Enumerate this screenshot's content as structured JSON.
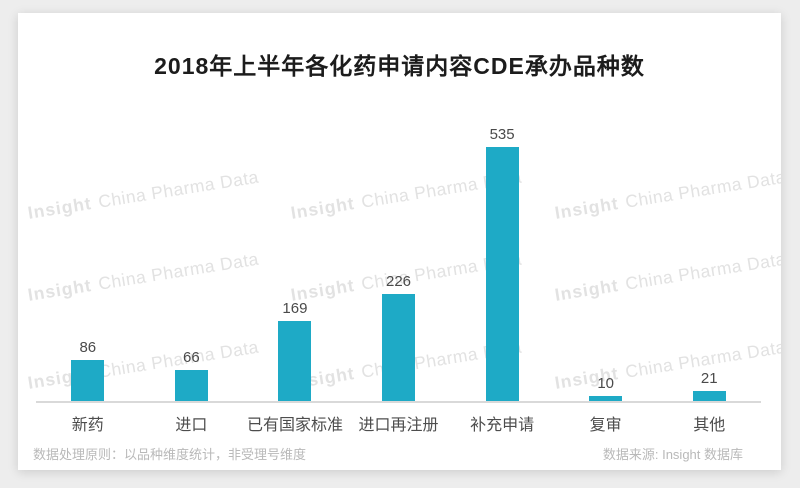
{
  "page": {
    "outer_background": "#ededed",
    "card_background": "#ffffff"
  },
  "chart_data": {
    "type": "bar",
    "title": "2018年上半年各化药申请内容CDE承办品种数",
    "categories": [
      "新药",
      "进口",
      "已有国家标准",
      "进口再注册",
      "补充申请",
      "复审",
      "其他"
    ],
    "values": [
      86,
      66,
      169,
      226,
      535,
      10,
      21
    ],
    "xlabel": "",
    "ylabel": "",
    "ylim": [
      0,
      560
    ],
    "grid": false,
    "legend": "none",
    "value_labels": true,
    "bar_color": "#1eaac6",
    "axis_color": "#d9d9d9"
  },
  "watermark": {
    "bold_part": "Insight",
    "regular_part": "China Pharma Data",
    "color": "#e2e2e2"
  },
  "footer": {
    "left_note": "数据处理原则：以品种维度统计，非受理号维度",
    "right_source": "数据来源: Insight 数据库"
  }
}
